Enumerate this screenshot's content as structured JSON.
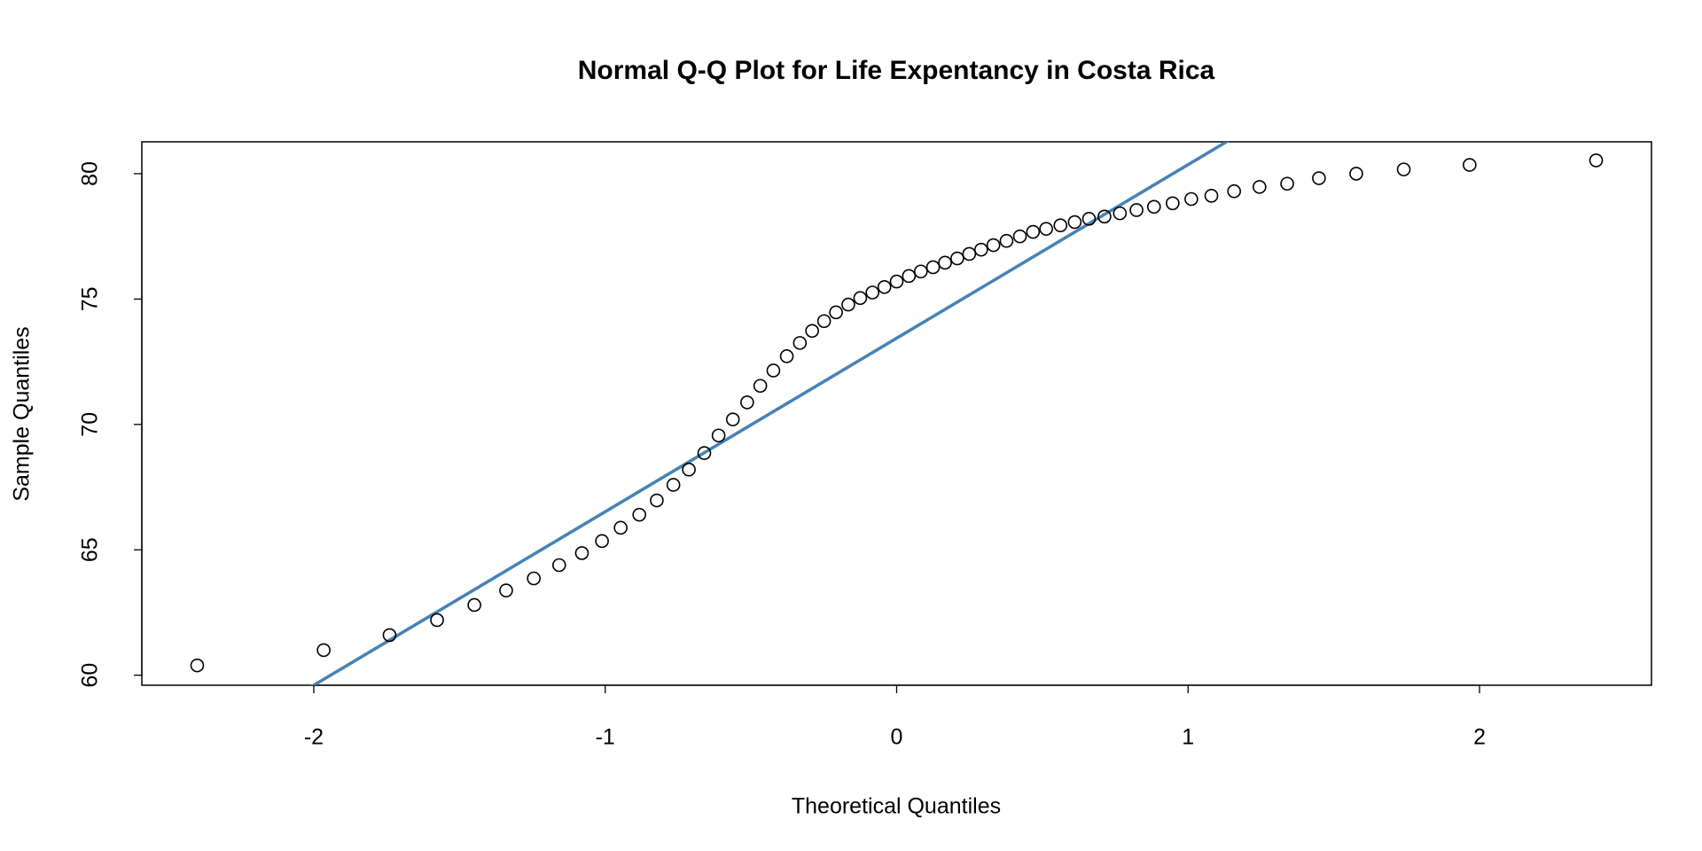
{
  "chart_data": {
    "type": "scatter",
    "title": "Normal Q-Q Plot for Life Expentancy in Costa Rica",
    "xlabel": "Theoretical Quantiles",
    "ylabel": "Sample Quantiles",
    "xlim": [
      -2.59,
      2.59
    ],
    "ylim": [
      59.6,
      81.27
    ],
    "xticks": [
      -2,
      -1,
      0,
      1,
      2
    ],
    "yticks": [
      60,
      65,
      70,
      75,
      80
    ],
    "marker_color": "#000000",
    "x": [
      -2.4,
      -1.966,
      -1.74,
      -1.577,
      -1.449,
      -1.34,
      -1.245,
      -1.158,
      -1.08,
      -1.011,
      -0.947,
      -0.883,
      -0.823,
      -0.766,
      -0.713,
      -0.66,
      -0.611,
      -0.562,
      -0.513,
      -0.468,
      -0.423,
      -0.377,
      -0.332,
      -0.29,
      -0.249,
      -0.208,
      -0.166,
      -0.125,
      -0.083,
      -0.042,
      0,
      0.042,
      0.083,
      0.125,
      0.166,
      0.208,
      0.249,
      0.29,
      0.332,
      0.377,
      0.423,
      0.468,
      0.513,
      0.562,
      0.611,
      0.66,
      0.713,
      0.766,
      0.823,
      0.883,
      0.947,
      1.011,
      1.08,
      1.158,
      1.245,
      1.34,
      1.449,
      1.577,
      1.74,
      1.966,
      2.4
    ],
    "values": [
      60.39,
      61.0,
      61.6,
      62.2,
      62.8,
      63.38,
      63.86,
      64.39,
      64.87,
      65.35,
      65.88,
      66.4,
      66.97,
      67.59,
      68.2,
      68.86,
      69.56,
      70.2,
      70.88,
      71.54,
      72.15,
      72.72,
      73.25,
      73.73,
      74.12,
      74.47,
      74.78,
      75.04,
      75.26,
      75.48,
      75.7,
      75.92,
      76.1,
      76.27,
      76.45,
      76.62,
      76.8,
      76.97,
      77.15,
      77.32,
      77.5,
      77.68,
      77.8,
      77.94,
      78.07,
      78.2,
      78.29,
      78.42,
      78.55,
      78.68,
      78.82,
      78.99,
      79.12,
      79.3,
      79.47,
      79.6,
      79.82,
      80.0,
      80.17,
      80.35,
      80.53
    ],
    "qqline": {
      "intercept": 73.44,
      "slope": 6.92,
      "color": "#4682b4"
    }
  }
}
